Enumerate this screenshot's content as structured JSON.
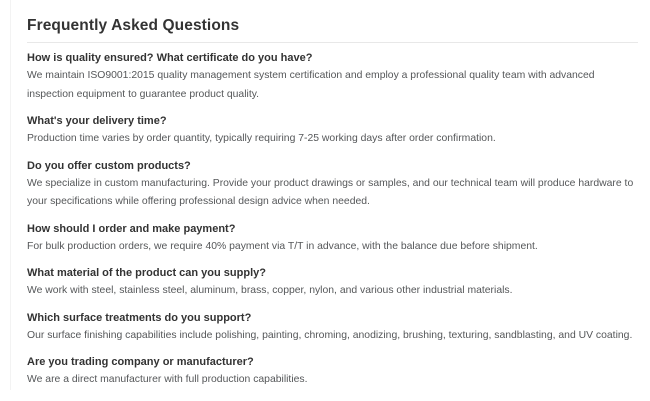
{
  "page": {
    "title": "Frequently Asked Questions"
  },
  "faq": {
    "items": [
      {
        "question": "How is quality ensured? What certificate do you have?",
        "answer": "We maintain ISO9001:2015 quality management system certification and employ a professional quality team with advanced inspection equipment to guarantee product quality."
      },
      {
        "question": "What's your delivery time?",
        "answer": "Production time varies by order quantity, typically requiring 7-25 working days after order confirmation."
      },
      {
        "question": "Do you offer custom products?",
        "answer": "We specialize in custom manufacturing. Provide your product drawings or samples, and our technical team will produce hardware to your specifications while offering professional design advice when needed."
      },
      {
        "question": "How should I order and make payment?",
        "answer": "For bulk production orders, we require 40% payment via T/T in advance, with the balance due before shipment."
      },
      {
        "question": "What material of the product can you supply?",
        "answer": "We work with steel, stainless steel, aluminum, brass, copper, nylon, and various other industrial materials."
      },
      {
        "question": "Which surface treatments do you support?",
        "answer": "Our surface finishing capabilities include polishing, painting, chroming, anodizing, brushing, texturing, sandblasting, and UV coating."
      },
      {
        "question": "Are you trading company or manufacturer?",
        "answer": "We are a direct manufacturer with full production capabilities."
      }
    ]
  },
  "colors": {
    "heading_text": "#333333",
    "body_text": "#555759",
    "title_rule": "#e8e8e8",
    "container_border": "#f3f3f3",
    "background": "#ffffff"
  }
}
